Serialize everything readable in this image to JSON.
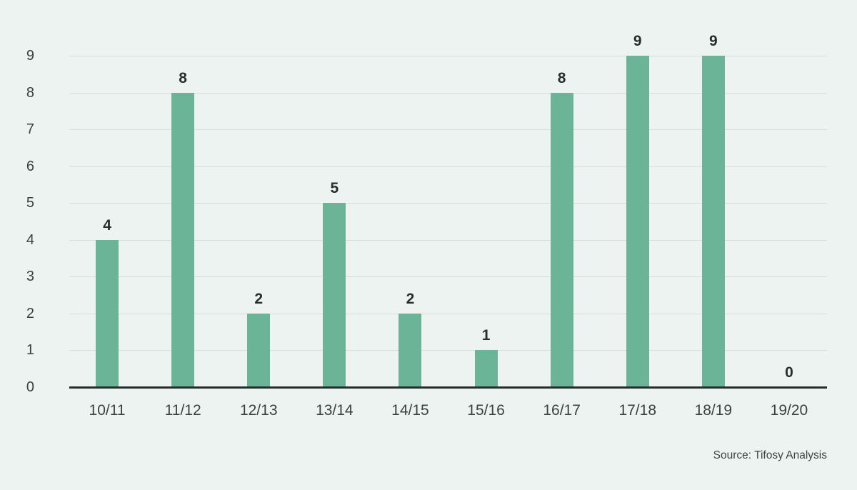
{
  "chart_data": {
    "type": "bar",
    "categories": [
      "10/11",
      "11/12",
      "12/13",
      "13/14",
      "14/15",
      "15/16",
      "16/17",
      "17/18",
      "18/19",
      "19/20"
    ],
    "values": [
      4,
      8,
      2,
      5,
      2,
      1,
      8,
      9,
      9,
      0
    ],
    "ylim": [
      0,
      9
    ],
    "yticks": [
      0,
      1,
      2,
      3,
      4,
      5,
      6,
      7,
      8,
      9
    ],
    "grid": true,
    "legend": false,
    "bar_labels_shown": true,
    "colors": {
      "bar": "#6cb497",
      "background": "#edf3f0",
      "gridline": "#d8ddda",
      "baseline": "#272d2c",
      "value_label": "#272e2d",
      "tick_label": "#3a4140",
      "source_text": "#3d4442"
    }
  },
  "source_note": "Source: Tifosy Analysis"
}
